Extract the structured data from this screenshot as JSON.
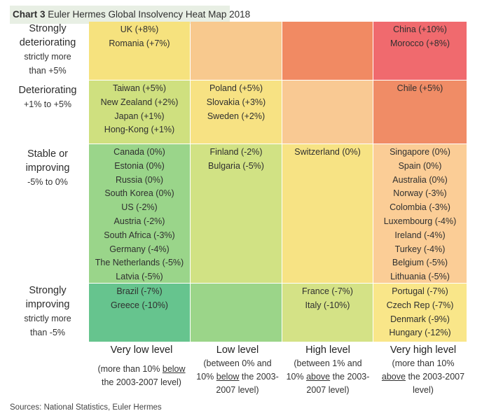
{
  "title": {
    "prefix": "Chart 3",
    "text": "Euler Hermes Global Insolvency Heat Map 2018"
  },
  "source": "Sources: National Statistics, Euler Hermes",
  "chart_data": {
    "type": "heatmap",
    "title": "Chart 3 Euler Hermes Global Insolvency Heat Map 2018",
    "rows": [
      {
        "label": "Strongly deteriorating",
        "sub": [
          "strictly more",
          "than +5%"
        ]
      },
      {
        "label": "Deteriorating",
        "sub": [
          "+1% to +5%"
        ]
      },
      {
        "label": "Stable or improving",
        "sub": [
          "-5% to 0%"
        ]
      },
      {
        "label": "Strongly improving",
        "sub": [
          "strictly more",
          "than -5%"
        ]
      }
    ],
    "columns": [
      {
        "label": "Very low level",
        "sub": [
          [
            "(more than 10% ",
            "below",
            ""
          ],
          [
            "the 2003-2007 level)",
            "",
            ""
          ]
        ]
      },
      {
        "label": "Low level",
        "sub": [
          [
            "(between 0% and",
            "",
            ""
          ],
          [
            "10% ",
            "below",
            " the 2003-"
          ],
          [
            "2007 level)",
            "",
            ""
          ]
        ]
      },
      {
        "label": "High level",
        "sub": [
          [
            "(between 1% and",
            "",
            ""
          ],
          [
            "10% ",
            "above",
            " the 2003-"
          ],
          [
            "2007 level)",
            "",
            ""
          ]
        ]
      },
      {
        "label": "Very high level",
        "sub": [
          [
            "(more than 10%",
            "",
            ""
          ],
          [
            "",
            "above",
            " the 2003-2007"
          ],
          [
            "level)",
            "",
            ""
          ]
        ]
      }
    ],
    "cells": [
      [
        {
          "color": "#f6e27e",
          "items": [
            "UK (+8%)",
            "Romania (+7%)"
          ]
        },
        {
          "color": "#f8c98e",
          "items": []
        },
        {
          "color": "#f18a63",
          "items": []
        },
        {
          "color": "#f06a6e",
          "items": [
            "China (+10%)",
            "Morocco (+8%)"
          ]
        }
      ],
      [
        {
          "color": "#cfe07f",
          "items": [
            "Taiwan (+5%)",
            "New Zealand (+2%)",
            "Japan (+1%)",
            "Hong-Kong (+1%)"
          ]
        },
        {
          "color": "#f7e283",
          "items": [
            "Poland (+5%)",
            "Slovakia (+3%)",
            "Sweden (+2%)"
          ]
        },
        {
          "color": "#f9c993",
          "items": []
        },
        {
          "color": "#f08c66",
          "items": [
            "Chile (+5%)"
          ]
        }
      ],
      [
        {
          "color": "#9ad58a",
          "items": [
            "Canada (0%)",
            "Estonia (0%)",
            "Russia (0%)",
            "South Korea (0%)",
            "US (-2%)",
            "Austria (-2%)",
            "South Africa (-3%)",
            "Germany (-4%)",
            "The Netherlands (-5%)",
            "Latvia (-5%)"
          ]
        },
        {
          "color": "#d1e284",
          "items": [
            "Finland (-2%)",
            "Bulgaria (-5%)"
          ]
        },
        {
          "color": "#f7e384",
          "items": [
            "Switzerland (0%)"
          ]
        },
        {
          "color": "#fbcd96",
          "items": [
            "Singapore (0%)",
            "Spain (0%)",
            "Australia (0%)",
            "Norway (-3%)",
            "Colombia (-3%)",
            "Luxembourg (-4%)",
            "Ireland (-4%)",
            "Turkey (-4%)",
            "Belgium (-5%)",
            "Lithuania (-5%)"
          ]
        }
      ],
      [
        {
          "color": "#66c48e",
          "items": [
            "Brazil (-7%)",
            "Greece (-10%)"
          ]
        },
        {
          "color": "#9bd589",
          "items": []
        },
        {
          "color": "#d4e286",
          "items": [
            "France (-7%)",
            "Italy (-10%)"
          ]
        },
        {
          "color": "#f9e689",
          "items": [
            "Portugal (-7%)",
            "Czech Rep (-7%)",
            "Denmark (-9%)",
            "Hungary (-12%)"
          ]
        }
      ]
    ]
  }
}
